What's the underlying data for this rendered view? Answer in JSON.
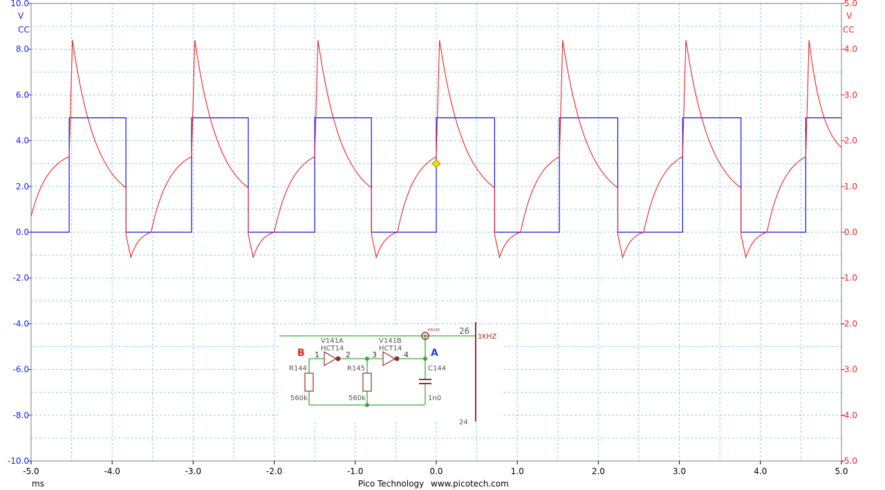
{
  "chart_data": {
    "type": "line",
    "title": "",
    "xlabel": "ms",
    "xlim": [
      -5.0,
      5.0
    ],
    "x_ticks": [
      "-5.0",
      "-4.0",
      "-3.0",
      "-2.0",
      "-1.0",
      "0.0",
      "1.0",
      "2.0",
      "3.0",
      "4.0",
      "5.0"
    ],
    "grid": true,
    "left_axis": {
      "unit": "V",
      "coupling": "CC",
      "ylim": [
        -10.0,
        10.0
      ],
      "ticks": [
        "10.0",
        "8.0",
        "6.0",
        "4.0",
        "2.0",
        "0.0",
        "-2.0",
        "-4.0",
        "-6.0",
        "-8.0",
        "-10.0"
      ]
    },
    "right_axis": {
      "unit": "V",
      "coupling": "CC",
      "ylim": [
        -5.0,
        5.0
      ],
      "ticks": [
        "5.0",
        "4.0",
        "3.0",
        "2.0",
        "1.0",
        "0.0",
        "-1.0",
        "-2.0",
        "-3.0",
        "-4.0",
        "-5.0"
      ]
    },
    "series": [
      {
        "axis": "left",
        "color": "#1010e0",
        "kind": "square wave",
        "low": 0.0,
        "high": 5.0,
        "rising_edges_ms": [
          -4.53,
          -3.02,
          -1.5,
          0.0,
          1.52,
          3.04,
          4.56
        ],
        "falling_edges_ms": [
          -3.83,
          -2.32,
          -0.8,
          0.72,
          2.24,
          3.76
        ]
      },
      {
        "axis": "right",
        "color": "#ee2020",
        "kind": "RC charge/discharge",
        "x": [
          -5.0,
          -4.53,
          -4.49,
          -3.83,
          -3.83,
          -3.77,
          -3.52,
          -3.02,
          -2.98,
          -2.32,
          -2.32,
          -2.26,
          -2.0,
          -1.5,
          -1.46,
          -0.8,
          -0.8,
          -0.74,
          -0.48,
          0.0,
          0.04,
          0.72,
          0.72,
          0.78,
          1.04,
          1.52,
          1.56,
          2.24,
          2.24,
          2.3,
          2.56,
          3.04,
          3.08,
          3.76,
          3.76,
          3.82,
          4.08,
          4.56,
          4.6,
          5.0
        ],
        "y": [
          0.35,
          1.65,
          4.2,
          0.97,
          -0.05,
          -0.55,
          0.0,
          1.65,
          4.2,
          0.97,
          -0.05,
          -0.55,
          0.0,
          1.65,
          4.2,
          0.97,
          -0.05,
          -0.55,
          0.0,
          1.65,
          4.2,
          0.97,
          -0.05,
          -0.55,
          0.0,
          1.65,
          4.2,
          0.97,
          -0.05,
          -0.55,
          0.0,
          1.65,
          4.2,
          0.97,
          -0.05,
          -0.55,
          0.0,
          1.65,
          4.2,
          1.85
        ]
      }
    ],
    "marker": {
      "x": 0.0,
      "y": 1.5,
      "axis": "right",
      "color": "#f0e000"
    }
  },
  "footer": {
    "brand": "Pico Technology",
    "url": "www.picotech.com"
  },
  "schematic": {
    "label_b": "B",
    "label_a": "A",
    "gate1_name": "V141A",
    "gate1_type": "HCT14",
    "gate2_name": "V141B",
    "gate2_type": "HCT14",
    "pin1": "1",
    "pin2": "2",
    "pin3": "3",
    "pin4": "4",
    "r1_name": "R144",
    "r1_value": "560k",
    "r2_name": "R145",
    "r2_value": "560k",
    "c_name": "C144",
    "c_value": "1n0",
    "via": "VIA156",
    "net_num": "26",
    "net_name": "1KHZ",
    "net_num_cut": "24"
  }
}
